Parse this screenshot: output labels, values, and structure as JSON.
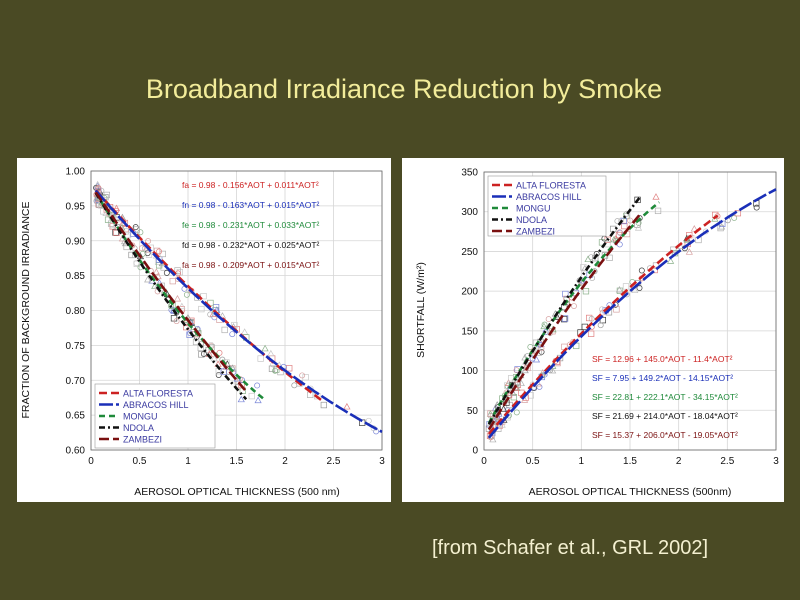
{
  "slide": {
    "title": "Broadband Irradiance Reduction by Smoke",
    "citation": "[from Schafer et al., GRL 2002]"
  },
  "chart_data": [
    {
      "type": "scatter",
      "xlabel": "AEROSOL OPTICAL THICKNESS (500 nm)",
      "ylabel": "FRACTION OF BACKGROUND IRRADIANCE",
      "xlim": [
        0,
        3
      ],
      "ylim": [
        0.6,
        1.0
      ],
      "xticks": [
        {
          "v": 0,
          "t": "0"
        },
        {
          "v": 0.5,
          "t": "0.5"
        },
        {
          "v": 1,
          "t": "1"
        },
        {
          "v": 1.5,
          "t": "1.5"
        },
        {
          "v": 2,
          "t": "2"
        },
        {
          "v": 2.5,
          "t": "2.5"
        },
        {
          "v": 3,
          "t": "3"
        }
      ],
      "yticks": [
        {
          "v": 1.0,
          "t": "1.00"
        },
        {
          "v": 0.95,
          "t": "0.95"
        },
        {
          "v": 0.9,
          "t": "0.90"
        },
        {
          "v": 0.85,
          "t": "0.85"
        },
        {
          "v": 0.8,
          "t": "0.80"
        },
        {
          "v": 0.75,
          "t": "0.75"
        },
        {
          "v": 0.7,
          "t": "0.70"
        },
        {
          "v": 0.65,
          "t": "0.65"
        },
        {
          "v": 0.6,
          "t": "0.60"
        }
      ],
      "grid": true,
      "legend_position": "bottom-left",
      "equations_position": "top-right",
      "series": [
        {
          "name": "ALTA FLORESTA",
          "color": "#cc2222",
          "dash": "8,4",
          "coef": [
            0.98,
            -0.156,
            0.011
          ],
          "range": [
            0.05,
            2.4
          ]
        },
        {
          "name": "ABRACOS HILL",
          "color": "#1a2fb8",
          "dash": "14,3",
          "coef": [
            0.98,
            -0.163,
            0.015
          ],
          "range": [
            0.05,
            3.0
          ]
        },
        {
          "name": "MONGU",
          "color": "#1f8a3a",
          "dash": "6,4",
          "coef": [
            0.98,
            -0.231,
            0.033
          ],
          "range": [
            0.05,
            1.8
          ]
        },
        {
          "name": "NDOLA",
          "color": "#111111",
          "dash": "6,3,2,3",
          "coef": [
            0.98,
            -0.232,
            0.025
          ],
          "range": [
            0.05,
            1.6
          ]
        },
        {
          "name": "ZAMBEZI",
          "color": "#7a1010",
          "dash": "10,4",
          "coef": [
            0.98,
            -0.209,
            0.015
          ],
          "range": [
            0.05,
            1.6
          ]
        }
      ],
      "equations": [
        {
          "text": "fa = 0.98 - 0.156*AOT + 0.011*AOT²",
          "color": "#cc2222"
        },
        {
          "text": "fn = 0.98 - 0.163*AOT + 0.015*AOT²",
          "color": "#1a2fb8"
        },
        {
          "text": "fe = 0.98 - 0.231*AOT + 0.033*AOT²",
          "color": "#1f8a3a"
        },
        {
          "text": "fd = 0.98 - 0.232*AOT + 0.025*AOT²",
          "color": "#111111"
        },
        {
          "text": "fa = 0.98 - 0.209*AOT + 0.015*AOT²",
          "color": "#7a1010"
        }
      ]
    },
    {
      "type": "scatter",
      "xlabel": "AEROSOL OPTICAL THICKNESS (500nm)",
      "ylabel": "SHORTFALL (W/m²)",
      "xlim": [
        0,
        3
      ],
      "ylim": [
        0,
        350
      ],
      "xticks": [
        {
          "v": 0,
          "t": "0"
        },
        {
          "v": 0.5,
          "t": "0.5"
        },
        {
          "v": 1,
          "t": "1"
        },
        {
          "v": 1.5,
          "t": "1.5"
        },
        {
          "v": 2,
          "t": "2"
        },
        {
          "v": 2.5,
          "t": "2.5"
        },
        {
          "v": 3,
          "t": "3"
        }
      ],
      "yticks": [
        {
          "v": 350,
          "t": "350"
        },
        {
          "v": 300,
          "t": "300"
        },
        {
          "v": 250,
          "t": "250"
        },
        {
          "v": 200,
          "t": "200"
        },
        {
          "v": 150,
          "t": "150"
        },
        {
          "v": 100,
          "t": "100"
        },
        {
          "v": 50,
          "t": "50"
        },
        {
          "v": 0,
          "t": "0"
        }
      ],
      "grid": true,
      "legend_position": "top-left",
      "equations_position": "bottom-right",
      "series": [
        {
          "name": "ALTA FLORESTA",
          "color": "#cc2222",
          "dash": "8,4",
          "coef": [
            12.96,
            145.0,
            -11.4
          ],
          "range": [
            0.05,
            2.4
          ]
        },
        {
          "name": "ABRACOS HILL",
          "color": "#1a2fb8",
          "dash": "14,3",
          "coef": [
            7.95,
            149.2,
            -14.15
          ],
          "range": [
            0.05,
            3.0
          ]
        },
        {
          "name": "MONGU",
          "color": "#1f8a3a",
          "dash": "6,4",
          "coef": [
            22.81,
            222.1,
            -34.15
          ],
          "range": [
            0.05,
            1.8
          ]
        },
        {
          "name": "NDOLA",
          "color": "#111111",
          "dash": "6,3,2,3",
          "coef": [
            21.69,
            214.0,
            -18.04
          ],
          "range": [
            0.05,
            1.6
          ]
        },
        {
          "name": "ZAMBEZI",
          "color": "#7a1010",
          "dash": "10,4",
          "coef": [
            15.37,
            206.0,
            -19.05
          ],
          "range": [
            0.05,
            1.6
          ]
        }
      ],
      "equations": [
        {
          "text": "SF = 12.96 + 145.0*AOT - 11.4*AOT²",
          "color": "#cc2222"
        },
        {
          "text": "SF = 7.95 + 149.2*AOT - 14.15*AOT²",
          "color": "#1a2fb8"
        },
        {
          "text": "SF = 22.81 + 222.1*AOT - 34.15*AOT²",
          "color": "#1f8a3a"
        },
        {
          "text": "SF = 21.69 + 214.0*AOT - 18.04*AOT²",
          "color": "#111111"
        },
        {
          "text": "SF = 15.37 + 206.0*AOT - 19.05*AOT²",
          "color": "#7a1010"
        }
      ]
    }
  ]
}
